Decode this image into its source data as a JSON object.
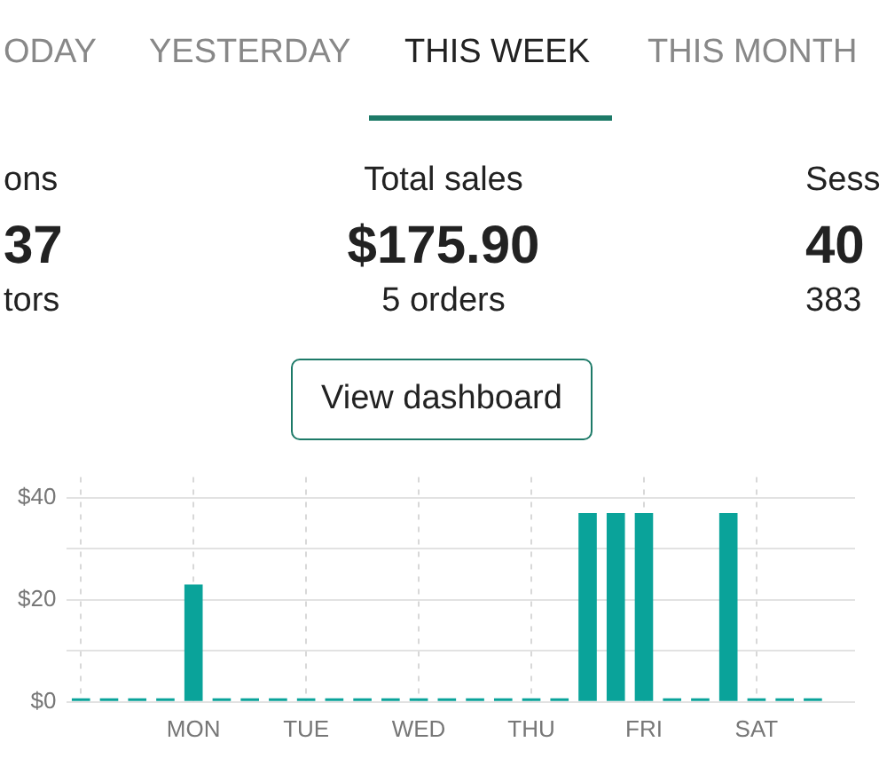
{
  "chart_data": {
    "type": "bar",
    "annotations": [
      "ODAY",
      "YESTERDAY",
      "THIS WEEK",
      "THIS MONTH",
      "ons",
      "37",
      "tors",
      "Total sales",
      "$175.90",
      "5 orders",
      "Sess",
      "40",
      "383",
      "View dashboard"
    ],
    "categories": [
      null,
      null,
      null,
      null,
      "MON",
      null,
      null,
      null,
      "TUE",
      null,
      null,
      null,
      "WED",
      null,
      null,
      null,
      "THU",
      null,
      null,
      null,
      "FRI",
      null,
      null,
      null,
      "SAT",
      null,
      null,
      null
    ],
    "values": [
      0,
      0,
      0,
      0,
      23,
      0,
      0,
      0,
      0,
      0,
      0,
      0,
      0,
      0,
      0,
      0,
      0,
      0,
      37,
      37,
      37,
      0,
      0,
      37,
      0,
      0,
      0,
      null
    ],
    "color": "#0aa39a",
    "ylim": [
      0,
      44
    ],
    "yticks": [
      {
        "value": 0,
        "label": "$0"
      },
      {
        "value": 10,
        "label": null
      },
      {
        "value": 20,
        "label": "$20"
      },
      {
        "value": 30,
        "label": null
      },
      {
        "value": 40,
        "label": "$40"
      }
    ],
    "grid": true,
    "legend": false
  }
}
